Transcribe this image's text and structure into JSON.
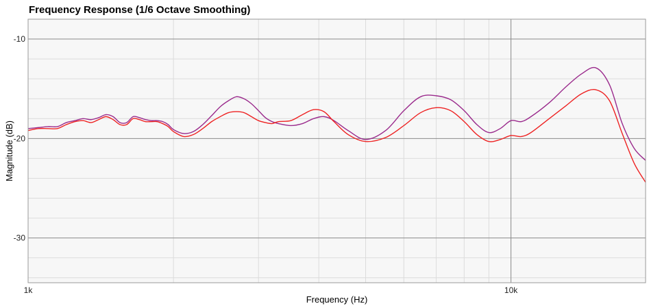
{
  "chart_data": {
    "type": "line",
    "title": "Frequency Response (1/6 Octave Smoothing)",
    "xlabel": "Frequency (Hz)",
    "ylabel": "Magnitude (dB)",
    "x_scale": "log",
    "xlim": [
      1000,
      19000
    ],
    "ylim": [
      -34.5,
      -8
    ],
    "grid": true,
    "x_ticks": [
      {
        "value": 1000,
        "label": "1k"
      },
      {
        "value": 10000,
        "label": "10k"
      }
    ],
    "y_ticks": [
      {
        "value": -10,
        "label": "-10"
      },
      {
        "value": -20,
        "label": "-20"
      },
      {
        "value": -30,
        "label": "-30"
      }
    ],
    "series": [
      {
        "color": "#9a2a8c",
        "x": [
          1000,
          1050,
          1100,
          1150,
          1200,
          1250,
          1300,
          1350,
          1400,
          1450,
          1500,
          1550,
          1600,
          1650,
          1700,
          1750,
          1800,
          1850,
          1900,
          1950,
          2000,
          2100,
          2200,
          2300,
          2400,
          2500,
          2600,
          2700,
          2800,
          2900,
          3000,
          3100,
          3200,
          3300,
          3500,
          3700,
          3900,
          4100,
          4300,
          4600,
          5000,
          5500,
          6000,
          6500,
          7000,
          7500,
          8000,
          8500,
          9000,
          9500,
          10000,
          10500,
          11000,
          12000,
          13000,
          14000,
          15000,
          16000,
          17000,
          18000,
          19000
        ],
        "y": [
          -19.0,
          -18.9,
          -18.8,
          -18.8,
          -18.4,
          -18.2,
          -18.0,
          -18.1,
          -17.9,
          -17.6,
          -17.8,
          -18.4,
          -18.4,
          -17.8,
          -17.9,
          -18.1,
          -18.2,
          -18.2,
          -18.3,
          -18.6,
          -19.1,
          -19.5,
          -19.3,
          -18.6,
          -17.7,
          -16.8,
          -16.2,
          -15.8,
          -16.0,
          -16.5,
          -17.2,
          -17.9,
          -18.3,
          -18.5,
          -18.7,
          -18.5,
          -18.0,
          -17.8,
          -18.2,
          -19.2,
          -20.1,
          -19.2,
          -17.2,
          -15.8,
          -15.7,
          -16.1,
          -17.2,
          -18.6,
          -19.4,
          -19.0,
          -18.2,
          -18.3,
          -17.8,
          -16.4,
          -14.8,
          -13.5,
          -12.9,
          -14.6,
          -18.5,
          -21.0,
          -22.2
        ]
      },
      {
        "color": "#ee2222",
        "x": [
          1000,
          1050,
          1100,
          1150,
          1200,
          1250,
          1300,
          1350,
          1400,
          1450,
          1500,
          1550,
          1600,
          1650,
          1700,
          1750,
          1800,
          1850,
          1900,
          1950,
          2000,
          2100,
          2200,
          2300,
          2400,
          2500,
          2600,
          2700,
          2800,
          2900,
          3000,
          3100,
          3200,
          3300,
          3500,
          3700,
          3900,
          4100,
          4300,
          4600,
          5000,
          5500,
          6000,
          6500,
          7000,
          7500,
          8000,
          8500,
          9000,
          9500,
          10000,
          10500,
          11000,
          12000,
          13000,
          14000,
          15000,
          16000,
          17000,
          18000,
          19000
        ],
        "y": [
          -19.2,
          -19.0,
          -19.0,
          -19.0,
          -18.6,
          -18.3,
          -18.2,
          -18.4,
          -18.1,
          -17.8,
          -18.1,
          -18.6,
          -18.6,
          -18.0,
          -18.1,
          -18.3,
          -18.3,
          -18.3,
          -18.5,
          -18.8,
          -19.3,
          -19.8,
          -19.6,
          -19.0,
          -18.3,
          -17.8,
          -17.4,
          -17.3,
          -17.4,
          -17.8,
          -18.2,
          -18.4,
          -18.5,
          -18.3,
          -18.2,
          -17.6,
          -17.1,
          -17.3,
          -18.3,
          -19.6,
          -20.3,
          -19.9,
          -18.7,
          -17.4,
          -16.9,
          -17.2,
          -18.3,
          -19.6,
          -20.3,
          -20.1,
          -19.7,
          -19.8,
          -19.4,
          -18.0,
          -16.7,
          -15.5,
          -15.1,
          -16.2,
          -19.5,
          -22.5,
          -24.4
        ]
      }
    ]
  }
}
